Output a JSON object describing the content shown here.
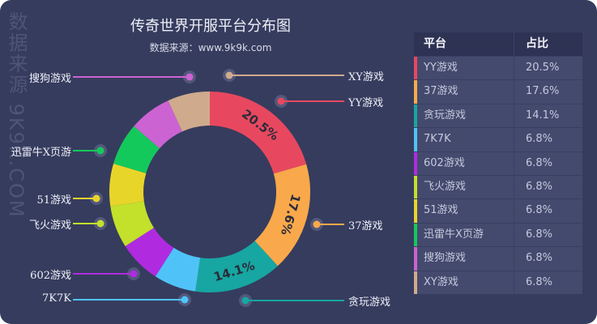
{
  "header": {
    "title": "传奇世界开服平台分布图",
    "subtitle": "数据来源：www.9k9k.com",
    "watermark": "数据来源 9K9K.COM"
  },
  "table": {
    "col1": "平台",
    "col2": "占比",
    "rows": [
      {
        "name": "YY游戏",
        "value": "20.5%",
        "color": "#e8485f"
      },
      {
        "name": "37游戏",
        "value": "17.6%",
        "color": "#f9a94b"
      },
      {
        "name": "贪玩游戏",
        "value": "14.1%",
        "color": "#17a6a1"
      },
      {
        "name": "7K7K",
        "value": "6.8%",
        "color": "#4fc3f7"
      },
      {
        "name": "602游戏",
        "value": "6.8%",
        "color": "#b02be0"
      },
      {
        "name": "飞火游戏",
        "value": "6.8%",
        "color": "#c3e02b"
      },
      {
        "name": "51游戏",
        "value": "6.8%",
        "color": "#e8d52a"
      },
      {
        "name": "迅雷牛X页游",
        "value": "6.8%",
        "color": "#14c95c"
      },
      {
        "name": "搜狗游戏",
        "value": "6.8%",
        "color": "#cc63d2"
      },
      {
        "name": "XY游戏",
        "value": "6.8%",
        "color": "#cfaa8c"
      }
    ]
  },
  "chart_data": {
    "type": "pie",
    "subtype": "donut",
    "title": "传奇世界开服平台分布图",
    "subtitle": "数据来源：www.9k9k.com",
    "categories": [
      "YY游戏",
      "37游戏",
      "贪玩游戏",
      "7K7K",
      "602游戏",
      "飞火游戏",
      "51游戏",
      "迅雷牛X页游",
      "搜狗游戏",
      "XY游戏"
    ],
    "values": [
      20.5,
      17.6,
      14.1,
      6.8,
      6.8,
      6.8,
      6.8,
      6.8,
      6.8,
      6.8
    ],
    "colors": [
      "#e8485f",
      "#f9a94b",
      "#17a6a1",
      "#4fc3f7",
      "#b02be0",
      "#c3e02b",
      "#e8d52a",
      "#14c95c",
      "#cc63d2",
      "#cfaa8c"
    ],
    "data_labels": [
      "20.5%",
      "17.6%",
      "14.1%"
    ],
    "legend": "table-right"
  }
}
